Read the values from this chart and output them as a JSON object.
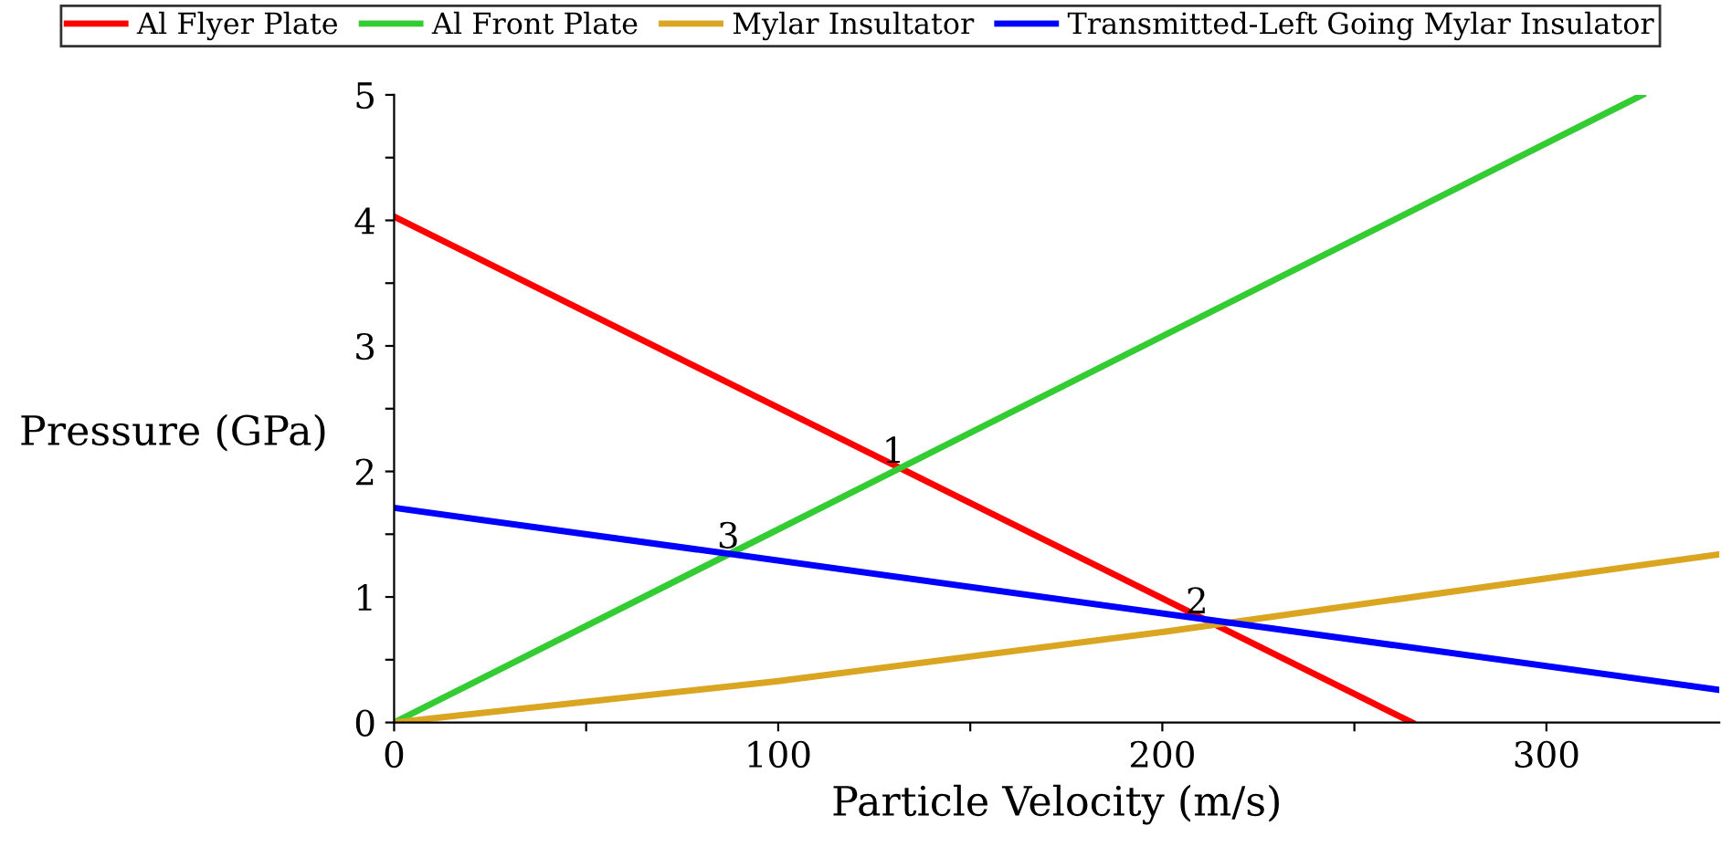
{
  "chart_data": {
    "type": "line",
    "xlabel": "Particle Velocity (m/s)",
    "ylabel": "Pressure (GPa)",
    "xlim": [
      0,
      345
    ],
    "ylim": [
      0,
      5
    ],
    "xticks": [
      0,
      {
        "value": 50,
        "label": null
      },
      100,
      {
        "value": 150,
        "label": null
      },
      200,
      {
        "value": 250,
        "label": null
      },
      300
    ],
    "yticks": [
      0,
      {
        "value": 0.5,
        "label": null
      },
      1,
      {
        "value": 1.5,
        "label": null
      },
      2,
      {
        "value": 2.5,
        "label": null
      },
      3,
      {
        "value": 3.5,
        "label": null
      },
      4,
      {
        "value": 4.5,
        "label": null
      },
      5
    ],
    "grid": false,
    "legend": "top",
    "line_style": "solid",
    "marker": "none",
    "series": [
      {
        "name": "Al Flyer Plate",
        "color": "#ff0000",
        "x": [
          0,
          265
        ],
        "values": [
          4.03,
          0
        ]
      },
      {
        "name": "Al Front Plate",
        "color": "#33cc33",
        "x": [
          0,
          325
        ],
        "values": [
          0,
          5
        ]
      },
      {
        "name": "Mylar Insultator",
        "color": "#daa520",
        "x": [
          0,
          100,
          200,
          345
        ],
        "values": [
          0,
          0.33,
          0.72,
          1.34
        ]
      },
      {
        "name": "Transmitted-Left Going Mylar Insulator",
        "color": "#0000ff",
        "x": [
          0,
          345
        ],
        "values": [
          1.71,
          0.26
        ]
      }
    ],
    "annotations": [
      {
        "text": "1",
        "x": 130,
        "y": 1.97
      },
      {
        "text": "2",
        "x": 209,
        "y": 0.77
      },
      {
        "text": "3",
        "x": 87,
        "y": 1.29
      }
    ]
  }
}
